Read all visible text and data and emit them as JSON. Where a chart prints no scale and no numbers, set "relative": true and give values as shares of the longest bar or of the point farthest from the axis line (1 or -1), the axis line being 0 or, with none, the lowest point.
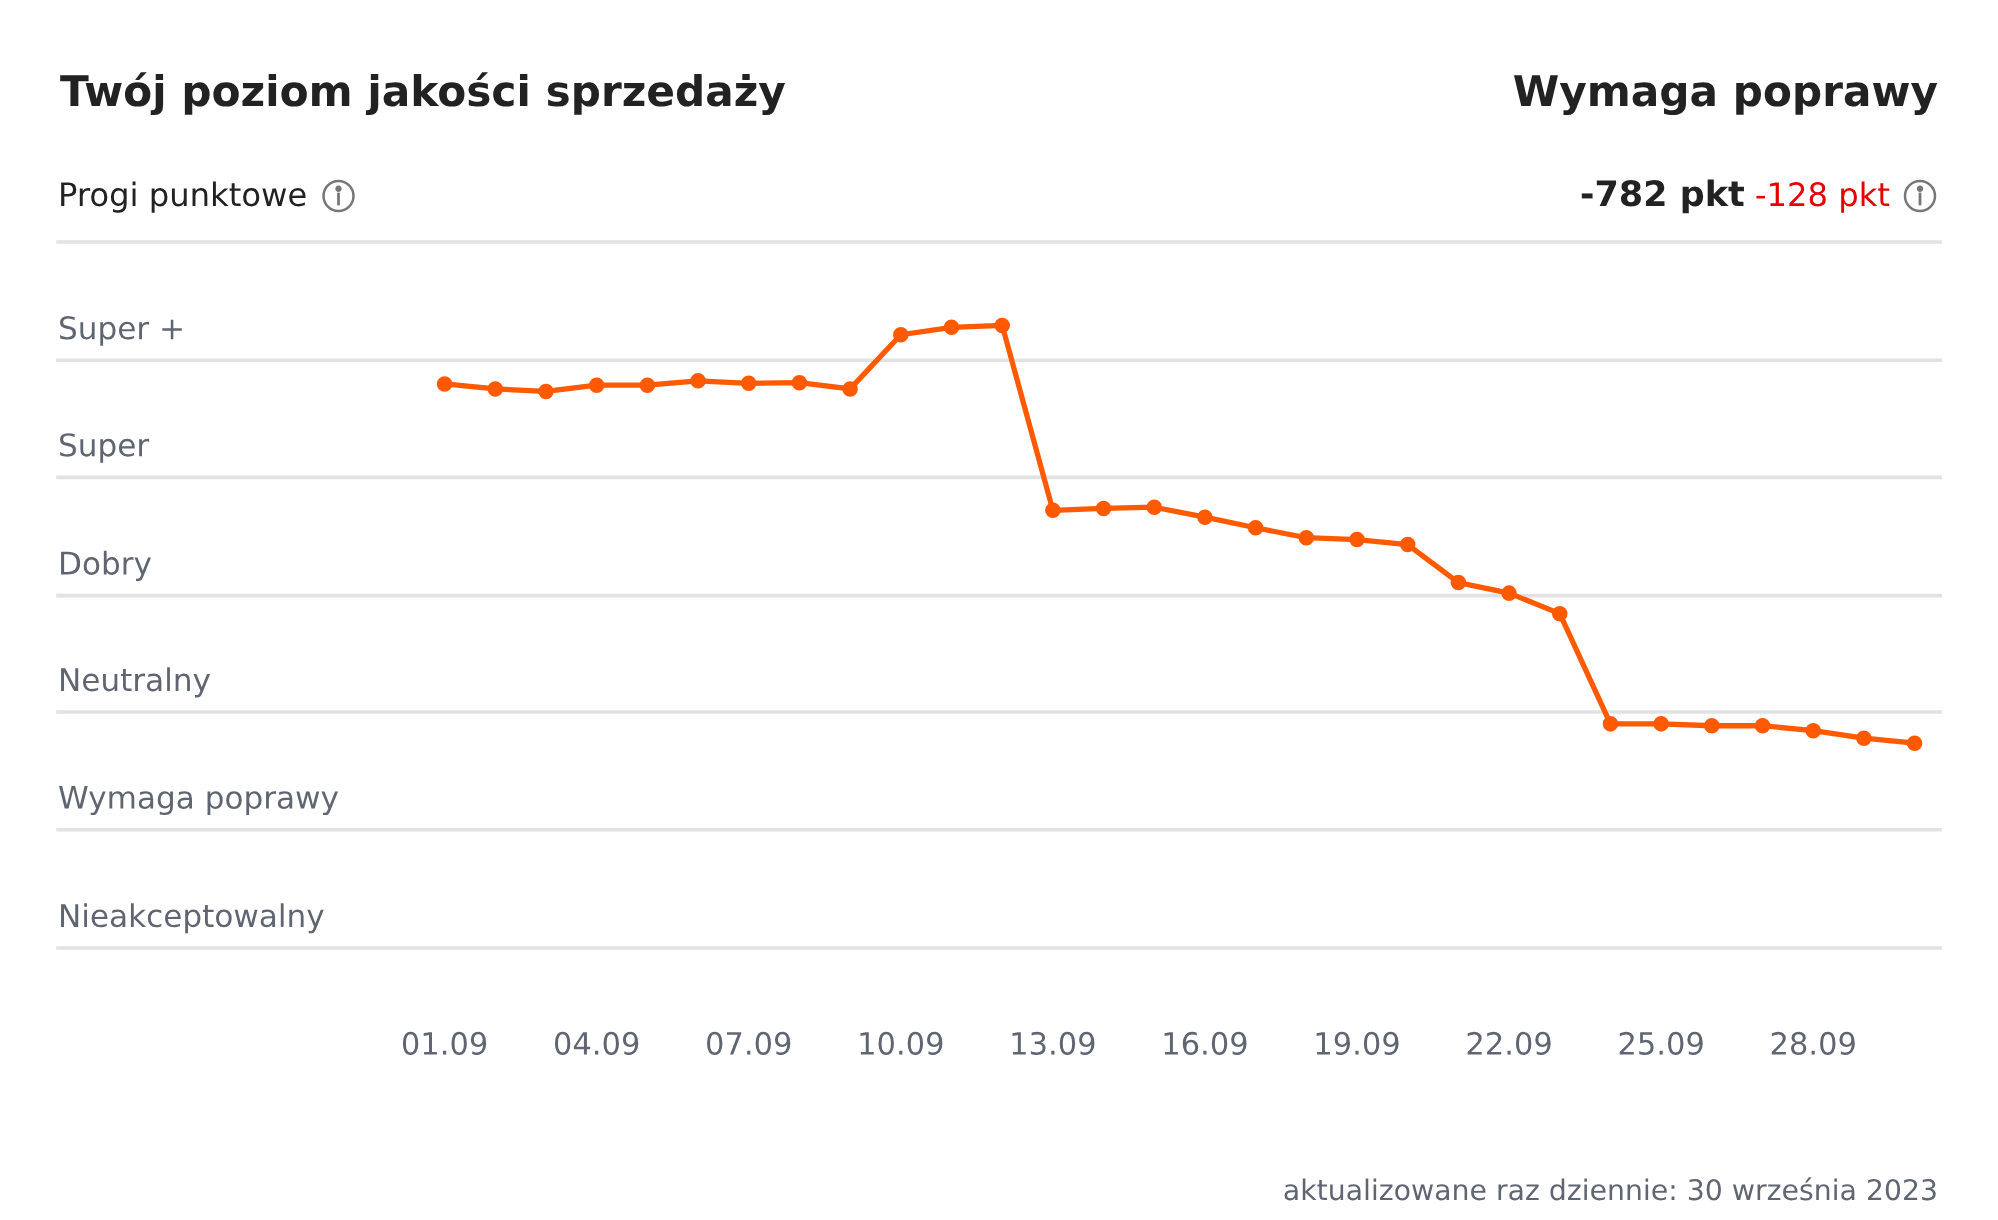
{
  "chart_data": {
    "type": "line",
    "title": "Twój poziom jakości sprzedaży",
    "subtitle": "Progi punktowe",
    "categories": [
      "01.09",
      null,
      null,
      "04.09",
      null,
      null,
      "07.09",
      null,
      null,
      "10.09",
      null,
      null,
      "13.09",
      null,
      null,
      "16.09",
      null,
      null,
      "19.09",
      null,
      null,
      "22.09",
      null,
      null,
      "25.09",
      null,
      null,
      "28.09",
      null,
      null
    ],
    "series": [
      {
        "color": "#ff5a00",
        "values": [
          0.906,
          0.898,
          0.894,
          0.904,
          0.904,
          0.911,
          0.907,
          0.908,
          0.898,
          0.985,
          0.997,
          1,
          0.703,
          0.706,
          0.708,
          0.692,
          0.675,
          0.659,
          0.656,
          0.648,
          0.587,
          0.57,
          0.537,
          0.36,
          0.36,
          0.357,
          0.357,
          0.349,
          0.337,
          0.329
        ]
      }
    ],
    "relative": true,
    "marker": "circle",
    "line_style": "solid",
    "ref_lines": [
      {
        "axis": "y",
        "value": 0,
        "label": "Nieakceptowalny",
        "color": "#e2e2e2"
      },
      {
        "axis": "y",
        "value": 0.19,
        "label": "Wymaga poprawy",
        "color": "#e2e2e2"
      },
      {
        "axis": "y",
        "value": 0.379,
        "label": "Neutralny",
        "color": "#e2e2e2"
      },
      {
        "axis": "y",
        "value": 0.566,
        "label": "Dobry",
        "color": "#e2e2e2"
      },
      {
        "axis": "y",
        "value": 0.756,
        "label": "Super",
        "color": "#e2e2e2"
      },
      {
        "axis": "y",
        "value": 0.944,
        "label": "Super +",
        "color": "#e2e2e2"
      },
      {
        "axis": "y",
        "value": 1.134,
        "color": "#e2e2e2"
      }
    ],
    "annotations": [
      "Wymaga poprawy",
      "-782 pkt",
      "-128 pkt",
      "aktualizowane raz dziennie: 30 września 2023"
    ]
  }
}
